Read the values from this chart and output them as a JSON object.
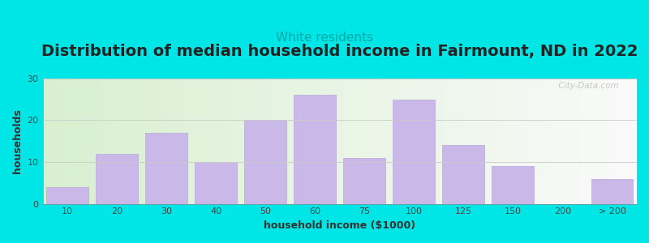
{
  "title": "Distribution of median household income in Fairmount, ND in 2022",
  "subtitle": "White residents",
  "xlabel": "household income ($1000)",
  "ylabel": "households",
  "bar_labels": [
    "10",
    "20",
    "30",
    "40",
    "50",
    "60",
    "75",
    "100",
    "125",
    "150",
    "200",
    "> 200"
  ],
  "bar_values": [
    4,
    12,
    17,
    10,
    20,
    26,
    11,
    25,
    14,
    9,
    0,
    6
  ],
  "bar_color": "#c9b8e8",
  "bar_edge_color": "#b8a8dc",
  "ylim": [
    0,
    30
  ],
  "yticks": [
    0,
    10,
    20,
    30
  ],
  "background_color": "#00e5e5",
  "plot_bg_color_left": "#d8f0d0",
  "title_fontsize": 14,
  "subtitle_color": "#00aaaa",
  "subtitle_fontsize": 11,
  "watermark": "  City-Data.com",
  "watermark_color": "#c0c0c0"
}
